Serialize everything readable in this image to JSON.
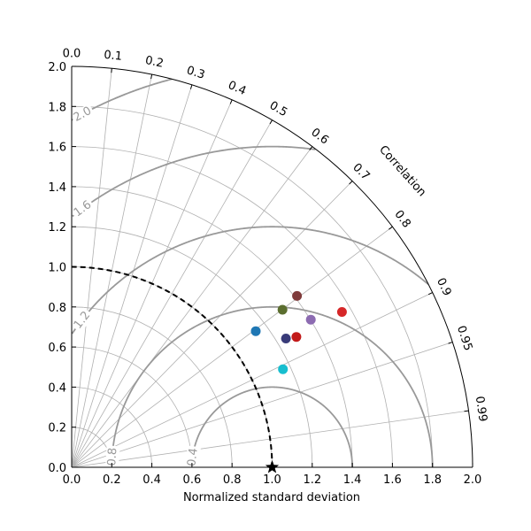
{
  "chart_data": {
    "type": "scatter",
    "subtype": "taylor-diagram",
    "xlabel": "Normalized standard deviation",
    "correlation_label": "Correlation",
    "std_range": [
      0,
      2.0
    ],
    "std_ticks": [
      "0.0",
      "0.2",
      "0.4",
      "0.6",
      "0.8",
      "1.0",
      "1.2",
      "1.4",
      "1.6",
      "1.8",
      "2.0"
    ],
    "correlation_ticks": [
      "0.0",
      "0.1",
      "0.2",
      "0.3",
      "0.4",
      "0.5",
      "0.6",
      "0.7",
      "0.8",
      "0.9",
      "0.95",
      "0.99"
    ],
    "rms_contours": [
      {
        "value": 0.4,
        "label": "0.4"
      },
      {
        "value": 0.8,
        "label": "0.8"
      },
      {
        "value": 1.2,
        "label": "1.2"
      },
      {
        "value": 1.6,
        "label": "1.6"
      },
      {
        "value": 2.0,
        "label": "2.0"
      }
    ],
    "reference": {
      "std": 1.0,
      "correlation": 1.0,
      "marker": "star"
    },
    "grid": true,
    "points": [
      {
        "std": 1.142,
        "correlation": 0.804,
        "color": "#1f77b4"
      },
      {
        "std": 1.162,
        "correlation": 0.907,
        "color": "#17becf"
      },
      {
        "std": 1.313,
        "correlation": 0.801,
        "color": "#5b6e2f"
      },
      {
        "std": 1.412,
        "correlation": 0.796,
        "color": "#7f3b3b"
      },
      {
        "std": 1.247,
        "correlation": 0.857,
        "color": "#393b79"
      },
      {
        "std": 1.296,
        "correlation": 0.865,
        "color": "#c21a1a"
      },
      {
        "std": 1.402,
        "correlation": 0.851,
        "color": "#8c6bb1"
      },
      {
        "std": 1.555,
        "correlation": 0.867,
        "color": "#d62728"
      }
    ]
  }
}
